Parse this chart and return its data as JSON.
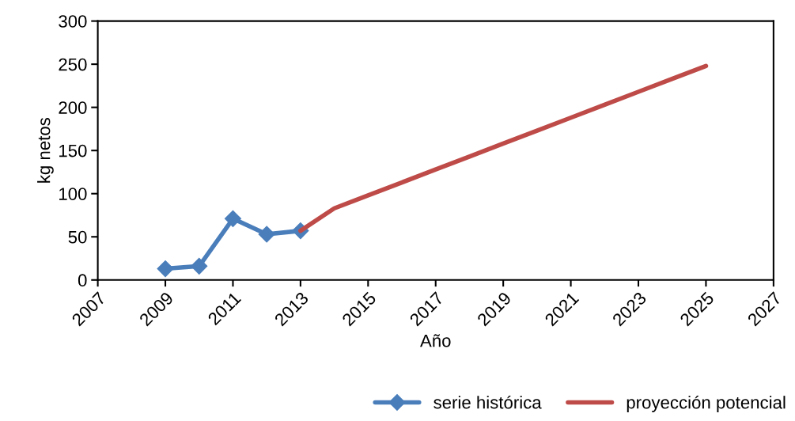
{
  "chart_data": {
    "type": "line",
    "xlabel": "Año",
    "ylabel": "kg netos",
    "xlim": [
      2007,
      2027
    ],
    "xticks": [
      2007,
      2009,
      2011,
      2013,
      2015,
      2017,
      2019,
      2021,
      2023,
      2025,
      2027
    ],
    "ylim": [
      0,
      300
    ],
    "yticks": [
      0,
      50,
      100,
      150,
      200,
      250,
      300
    ],
    "grid": false,
    "legend": "bottom right",
    "series": [
      {
        "name": "serie histórica",
        "color": "#4a7ebb",
        "marker": "diamond",
        "x": [
          2009,
          2010,
          2011,
          2012,
          2013
        ],
        "values": [
          13,
          16,
          71,
          53,
          57
        ]
      },
      {
        "name": "proyección potencial",
        "color": "#be4b48",
        "marker": "none",
        "x": [
          2013,
          2014,
          2015,
          2016,
          2017,
          2018,
          2019,
          2020,
          2021,
          2022,
          2023,
          2024,
          2025
        ],
        "values": [
          57,
          83,
          98,
          113,
          128,
          143,
          158,
          173,
          188,
          203,
          218,
          233,
          248
        ]
      }
    ]
  }
}
